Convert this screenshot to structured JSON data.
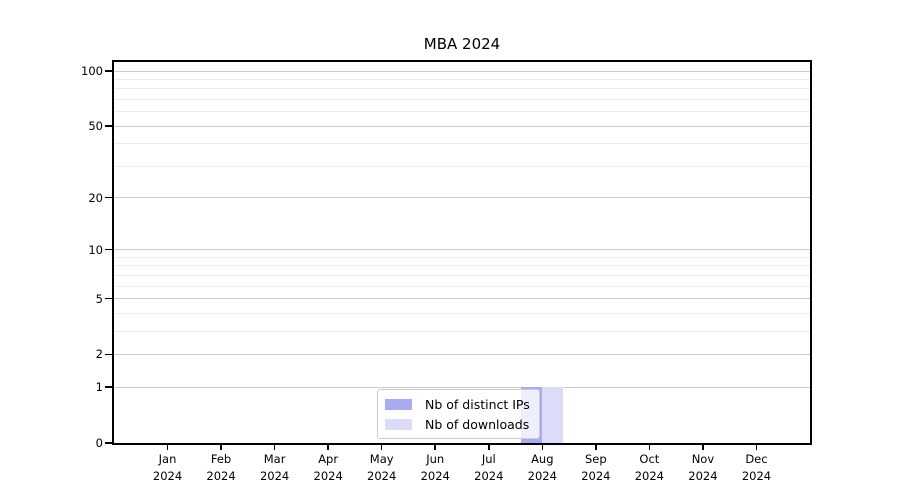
{
  "chart_data": {
    "type": "bar",
    "title": "MBA 2024",
    "categories": [
      "Jan",
      "Feb",
      "Mar",
      "Apr",
      "May",
      "Jun",
      "Jul",
      "Aug",
      "Sep",
      "Oct",
      "Nov",
      "Dec"
    ],
    "category_year": "2024",
    "series": [
      {
        "name": "Nb of distinct IPs",
        "color": "#aaaaee",
        "values": [
          0,
          0,
          0,
          0,
          0,
          0,
          0,
          1,
          0,
          0,
          0,
          0
        ]
      },
      {
        "name": "Nb of downloads",
        "color": "#dcdcf8",
        "values": [
          0,
          0,
          0,
          0,
          0,
          0,
          0,
          1,
          0,
          0,
          0,
          0
        ]
      }
    ],
    "xlabel": "",
    "ylabel": "",
    "y_scale": "log1p",
    "y_ticks": [
      0,
      1,
      2,
      5,
      10,
      20,
      50,
      100
    ],
    "y_minor_ticks": [
      3,
      4,
      6,
      7,
      8,
      9,
      30,
      40,
      60,
      70,
      80,
      90
    ],
    "ylim": [
      0,
      112
    ],
    "grid": "horizontal",
    "legend_position": "lower center"
  },
  "colors": {
    "axis": "#000000",
    "grid_major": "#cccccc",
    "grid_minor": "#ebebeb",
    "legend_border": "#cccccc",
    "legend_background": "rgba(255,255,255,0.8)"
  }
}
